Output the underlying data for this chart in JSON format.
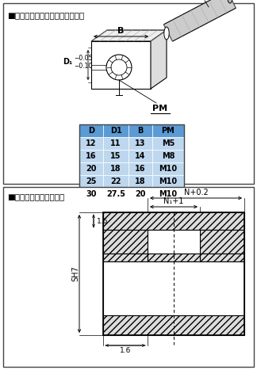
{
  "title1": "■适用斜导杆：安装尺寸参考范例",
  "title2": "■十字槽尺寸（参考值）",
  "table_headers": [
    "D",
    "D1",
    "B",
    "PM"
  ],
  "table_data": [
    [
      "12",
      "11",
      "13",
      "M5"
    ],
    [
      "16",
      "15",
      "14",
      "M8"
    ],
    [
      "20",
      "18",
      "16",
      "M10"
    ],
    [
      "25",
      "22",
      "18",
      "M10"
    ],
    [
      "30",
      "27.5",
      "20",
      "M10"
    ]
  ],
  "header_bg": "#5B9BD5",
  "row_bg": "#BDD7EE",
  "header_text": "#000000",
  "row_text": "#000000",
  "bg_color": "#FFFFFF",
  "cross_n": "N+0.2",
  "cross_n1": "N₁+1",
  "cross_sh7": "SH7",
  "cross_16a": "1.6",
  "cross_16b": "1.6"
}
